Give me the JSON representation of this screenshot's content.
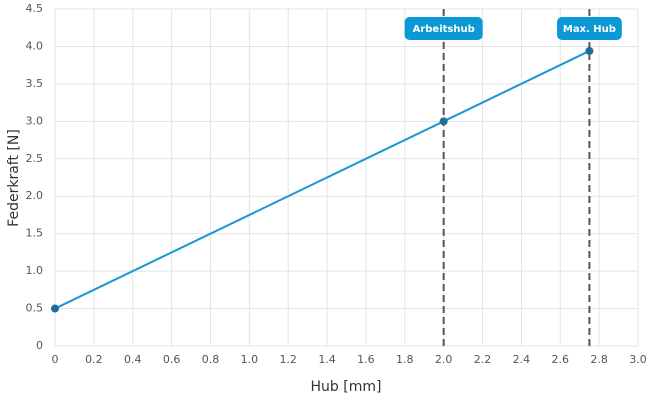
{
  "chart_data": {
    "type": "line",
    "x": [
      0,
      2,
      2.75
    ],
    "values": [
      0.5,
      3.0,
      3.94
    ],
    "color": "#1a96d4",
    "marker_color": "#1f6d9c",
    "xlabel": "Hub [mm]",
    "ylabel": "Federkraft [N]",
    "xlim": [
      0,
      3
    ],
    "xticks": [
      0,
      0.2,
      0.4,
      0.6,
      0.8,
      {
        "value": 1,
        "label": "1.0"
      },
      1.2,
      1.4,
      1.6,
      1.8,
      {
        "value": 2,
        "label": "2.0"
      },
      2.2,
      2.4,
      2.6,
      2.8,
      {
        "value": 3,
        "label": "3.0"
      }
    ],
    "ylim": [
      0,
      4.5
    ],
    "yticks": [
      0,
      0.5,
      {
        "value": 1,
        "label": "1.0"
      },
      1.5,
      {
        "value": 2,
        "label": "2.0"
      },
      2.5,
      {
        "value": 3,
        "label": "3.0"
      },
      3.5,
      {
        "value": 4,
        "label": "4.0"
      },
      4.5
    ],
    "grid": true,
    "annotations": [
      {
        "x": 2,
        "label": "Arbeitshub"
      },
      {
        "x": 2.75,
        "label": "Max. Hub"
      }
    ],
    "annotation_color": "#0a98d6"
  }
}
